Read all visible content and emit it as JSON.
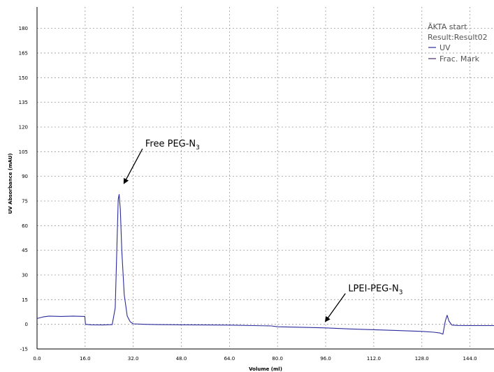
{
  "chart_data": {
    "type": "line",
    "xlabel": "Volume (ml)",
    "ylabel": "UV Absorbance (mAU)",
    "xlim": [
      0,
      152
    ],
    "ylim": [
      -15,
      193
    ],
    "xticks": [
      "0.0",
      "16.0",
      "32.0",
      "48.0",
      "64.0",
      "80.0",
      "96.0",
      "112.0",
      "128.0",
      "144.0"
    ],
    "yticks": [
      "-15",
      "0",
      "15",
      "30",
      "45",
      "60",
      "75",
      "90",
      "105",
      "120",
      "135",
      "150",
      "165",
      "180"
    ],
    "grid": true,
    "legend": {
      "placement": "top-right",
      "header_lines": [
        "ÄKTA  start",
        "Result:Result02"
      ],
      "entries": [
        {
          "name": "UV",
          "color": "#2b2b9c"
        },
        {
          "name": "Frac.  Mark",
          "color": "#4a2a6a"
        }
      ]
    },
    "series": [
      {
        "name": "UV",
        "color": "#2b2b9c",
        "x": [
          0,
          2,
          4,
          8,
          12,
          15.9,
          16.1,
          18,
          22,
          25,
          26,
          26.6,
          27,
          27.3,
          27.7,
          28.2,
          29,
          30,
          31,
          32,
          36,
          40,
          48,
          56,
          64,
          72,
          78,
          80,
          88,
          96,
          104,
          112,
          120,
          128,
          132,
          134,
          135,
          135.8,
          136.4,
          137,
          138,
          140,
          144,
          152
        ],
        "y": [
          3.5,
          4.5,
          5.0,
          4.8,
          5.0,
          4.8,
          0,
          -0.3,
          -0.4,
          -0.2,
          10,
          50,
          76,
          79,
          70,
          45,
          18,
          5,
          1.5,
          0.3,
          0,
          -0.2,
          -0.3,
          -0.4,
          -0.5,
          -0.8,
          -1.0,
          -1.5,
          -1.8,
          -2.2,
          -2.8,
          -3.3,
          -3.8,
          -4.3,
          -4.8,
          -5.3,
          -6.0,
          2,
          5.5,
          2,
          -0.5,
          -0.7,
          -0.8,
          -0.8
        ]
      }
    ],
    "annotations": [
      {
        "text": "Free PEG-N",
        "subscript": "3",
        "label_x": 36,
        "label_y": 108,
        "arrow_x": 29,
        "arrow_y": 86
      },
      {
        "text": "LPEI-PEG-N",
        "subscript": "3",
        "label_x": 103.5,
        "label_y": 20,
        "arrow_x": 96,
        "arrow_y": 2
      }
    ]
  }
}
